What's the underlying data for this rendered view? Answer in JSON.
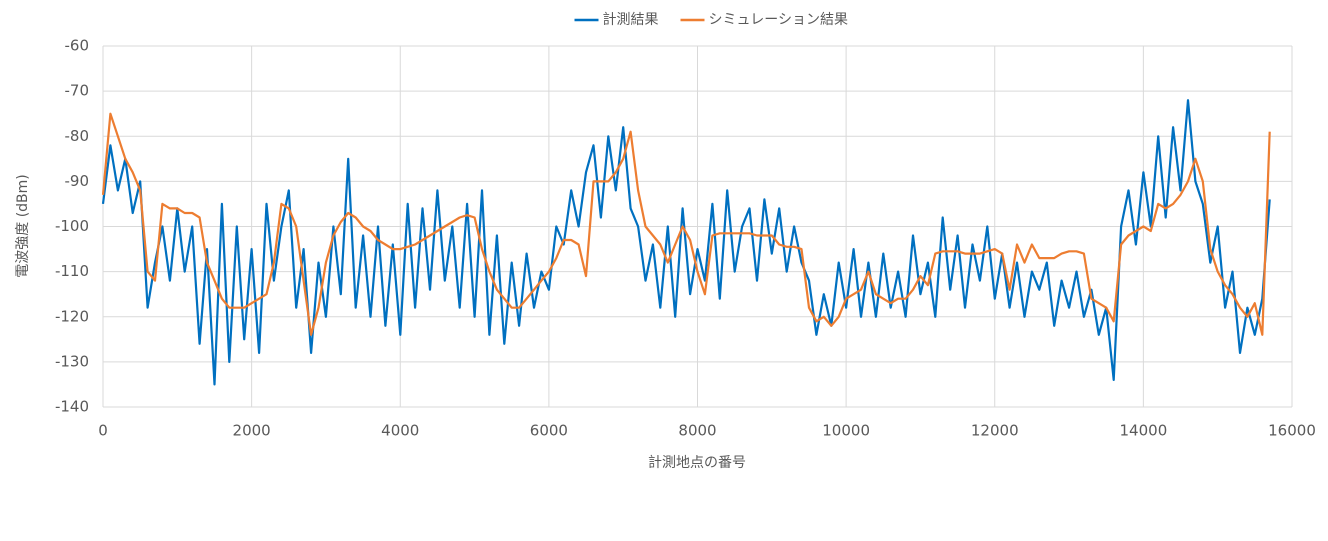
{
  "chart_data": {
    "type": "line",
    "xlabel": "計測地点の番号",
    "ylabel": "電波強度 (dBm)",
    "xlim": [
      0,
      16000
    ],
    "xticks": [
      0,
      2000,
      4000,
      6000,
      8000,
      10000,
      12000,
      14000,
      16000
    ],
    "ylim": [
      -140,
      -60
    ],
    "yticks": [
      -60,
      -70,
      -80,
      -90,
      -100,
      -110,
      -120,
      -130,
      -140
    ],
    "grid": true,
    "legend": "top",
    "x": [
      0,
      100,
      200,
      300,
      400,
      500,
      600,
      700,
      800,
      900,
      1000,
      1100,
      1200,
      1300,
      1400,
      1500,
      1600,
      1700,
      1800,
      1900,
      2000,
      2100,
      2200,
      2300,
      2400,
      2500,
      2600,
      2700,
      2800,
      2900,
      3000,
      3100,
      3200,
      3300,
      3400,
      3500,
      3600,
      3700,
      3800,
      3900,
      4000,
      4100,
      4200,
      4300,
      4400,
      4500,
      4600,
      4700,
      4800,
      4900,
      5000,
      5100,
      5200,
      5300,
      5400,
      5500,
      5600,
      5700,
      5800,
      5900,
      6000,
      6100,
      6200,
      6300,
      6400,
      6500,
      6600,
      6700,
      6800,
      6900,
      7000,
      7100,
      7200,
      7300,
      7400,
      7500,
      7600,
      7700,
      7800,
      7900,
      8000,
      8100,
      8200,
      8300,
      8400,
      8500,
      8600,
      8700,
      8800,
      8900,
      9000,
      9100,
      9200,
      9300,
      9400,
      9500,
      9600,
      9700,
      9800,
      9900,
      10000,
      10100,
      10200,
      10300,
      10400,
      10500,
      10600,
      10700,
      10800,
      10900,
      11000,
      11100,
      11200,
      11300,
      11400,
      11500,
      11600,
      11700,
      11800,
      11900,
      12000,
      12100,
      12200,
      12300,
      12400,
      12500,
      12600,
      12700,
      12800,
      12900,
      13000,
      13100,
      13200,
      13300,
      13400,
      13500,
      13600,
      13700,
      13800,
      13900,
      14000,
      14100,
      14200,
      14300,
      14400,
      14500,
      14600,
      14700,
      14800,
      14900,
      15000,
      15100,
      15200,
      15300,
      15400,
      15500,
      15600,
      15700
    ],
    "series": [
      {
        "name": "計測結果",
        "color": "#0070c0",
        "values": [
          -95,
          -82,
          -92,
          -85,
          -97,
          -90,
          -118,
          -108,
          -100,
          -112,
          -96,
          -110,
          -100,
          -126,
          -105,
          -135,
          -95,
          -130,
          -100,
          -125,
          -105,
          -128,
          -95,
          -112,
          -100,
          -92,
          -118,
          -105,
          -128,
          -108,
          -120,
          -100,
          -115,
          -85,
          -118,
          -102,
          -120,
          -100,
          -122,
          -104,
          -124,
          -95,
          -118,
          -96,
          -114,
          -92,
          -112,
          -100,
          -118,
          -95,
          -120,
          -92,
          -124,
          -102,
          -126,
          -108,
          -122,
          -106,
          -118,
          -110,
          -114,
          -100,
          -104,
          -92,
          -100,
          -88,
          -82,
          -98,
          -80,
          -92,
          -78,
          -96,
          -100,
          -112,
          -104,
          -118,
          -100,
          -120,
          -96,
          -115,
          -105,
          -112,
          -95,
          -116,
          -92,
          -110,
          -100,
          -96,
          -112,
          -94,
          -106,
          -96,
          -110,
          -100,
          -108,
          -112,
          -124,
          -115,
          -122,
          -108,
          -118,
          -105,
          -120,
          -108,
          -120,
          -106,
          -118,
          -110,
          -120,
          -102,
          -115,
          -108,
          -120,
          -98,
          -114,
          -102,
          -118,
          -104,
          -112,
          -100,
          -116,
          -106,
          -118,
          -108,
          -120,
          -110,
          -114,
          -108,
          -122,
          -112,
          -118,
          -110,
          -120,
          -114,
          -124,
          -118,
          -134,
          -100,
          -92,
          -104,
          -88,
          -100,
          -80,
          -98,
          -78,
          -92,
          -72,
          -90,
          -95,
          -108,
          -100,
          -118,
          -110,
          -128,
          -118,
          -124,
          -116,
          -94
        ]
      },
      {
        "name": "シミュレーション結果",
        "color": "#ed7d31",
        "values": [
          -93,
          -75,
          -80,
          -85,
          -88,
          -92,
          -110,
          -112,
          -95,
          -96,
          -96,
          -97,
          -97,
          -98,
          -108,
          -112,
          -116,
          -118,
          -118,
          -118,
          -117,
          -116,
          -115,
          -108,
          -95,
          -96,
          -100,
          -112,
          -124,
          -118,
          -108,
          -102,
          -99,
          -97,
          -98,
          -100,
          -101,
          -103,
          -104,
          -105,
          -105,
          -104.5,
          -104,
          -103,
          -102,
          -101,
          -100,
          -99,
          -98,
          -97.5,
          -98,
          -105,
          -110,
          -114,
          -116,
          -118,
          -118,
          -116,
          -114,
          -112,
          -110,
          -107,
          -103,
          -103,
          -104,
          -111,
          -90,
          -90,
          -90,
          -88,
          -85,
          -79,
          -92,
          -100,
          -102,
          -104,
          -108,
          -104,
          -100,
          -103,
          -110,
          -115,
          -102,
          -101.5,
          -101.5,
          -101.5,
          -101.5,
          -101.5,
          -102,
          -102,
          -102,
          -104,
          -104.5,
          -104.5,
          -105,
          -118,
          -121,
          -120,
          -122,
          -120,
          -116,
          -115,
          -114,
          -110,
          -115,
          -116,
          -117,
          -116,
          -116,
          -114,
          -111,
          -113,
          -106,
          -105.5,
          -105.5,
          -105.5,
          -106,
          -106,
          -106,
          -105.5,
          -105,
          -106,
          -114,
          -104,
          -108,
          -104,
          -107,
          -107,
          -107,
          -106,
          -105.5,
          -105.5,
          -106,
          -116,
          -117,
          -118,
          -121,
          -104,
          -102,
          -101,
          -100,
          -101,
          -95,
          -96,
          -95,
          -93,
          -90,
          -85,
          -90,
          -105,
          -110,
          -113,
          -115,
          -118,
          -120,
          -117,
          -124,
          -79
        ]
      }
    ]
  }
}
